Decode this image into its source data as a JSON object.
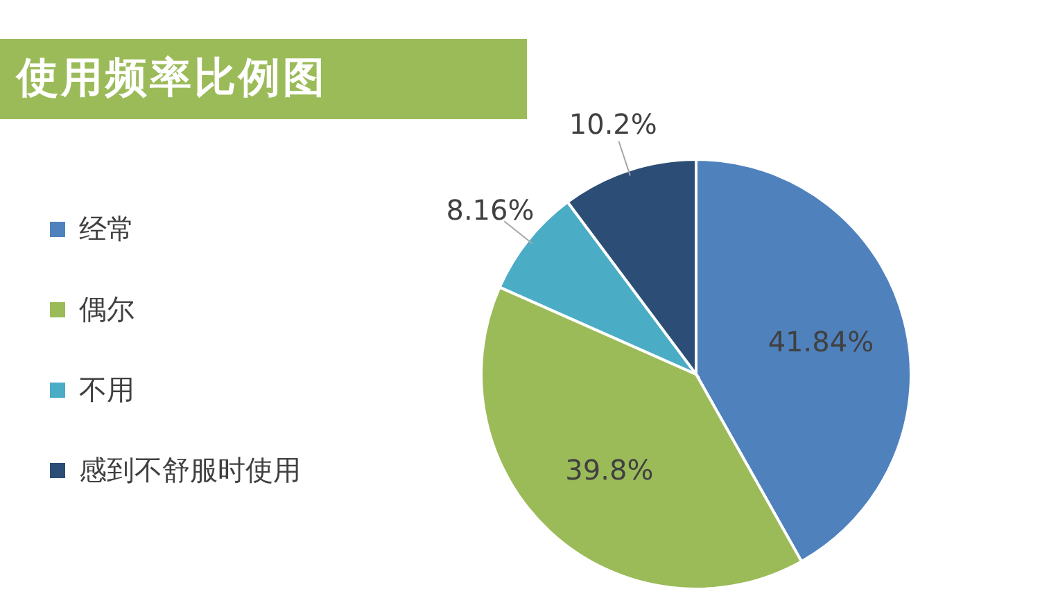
{
  "chart_data": {
    "type": "pie",
    "title": "使用频率比例图",
    "categories": [
      "经常",
      "偶尔",
      "不用",
      "感到不舒服时使用"
    ],
    "values": [
      41.84,
      39.8,
      8.16,
      10.2
    ],
    "value_labels": [
      "41.84%",
      "39.8%",
      "8.16%",
      "10.2%"
    ],
    "colors": [
      "#4f81bd",
      "#9bbb59",
      "#4bacc6",
      "#2c4d75"
    ],
    "legend": "left"
  }
}
